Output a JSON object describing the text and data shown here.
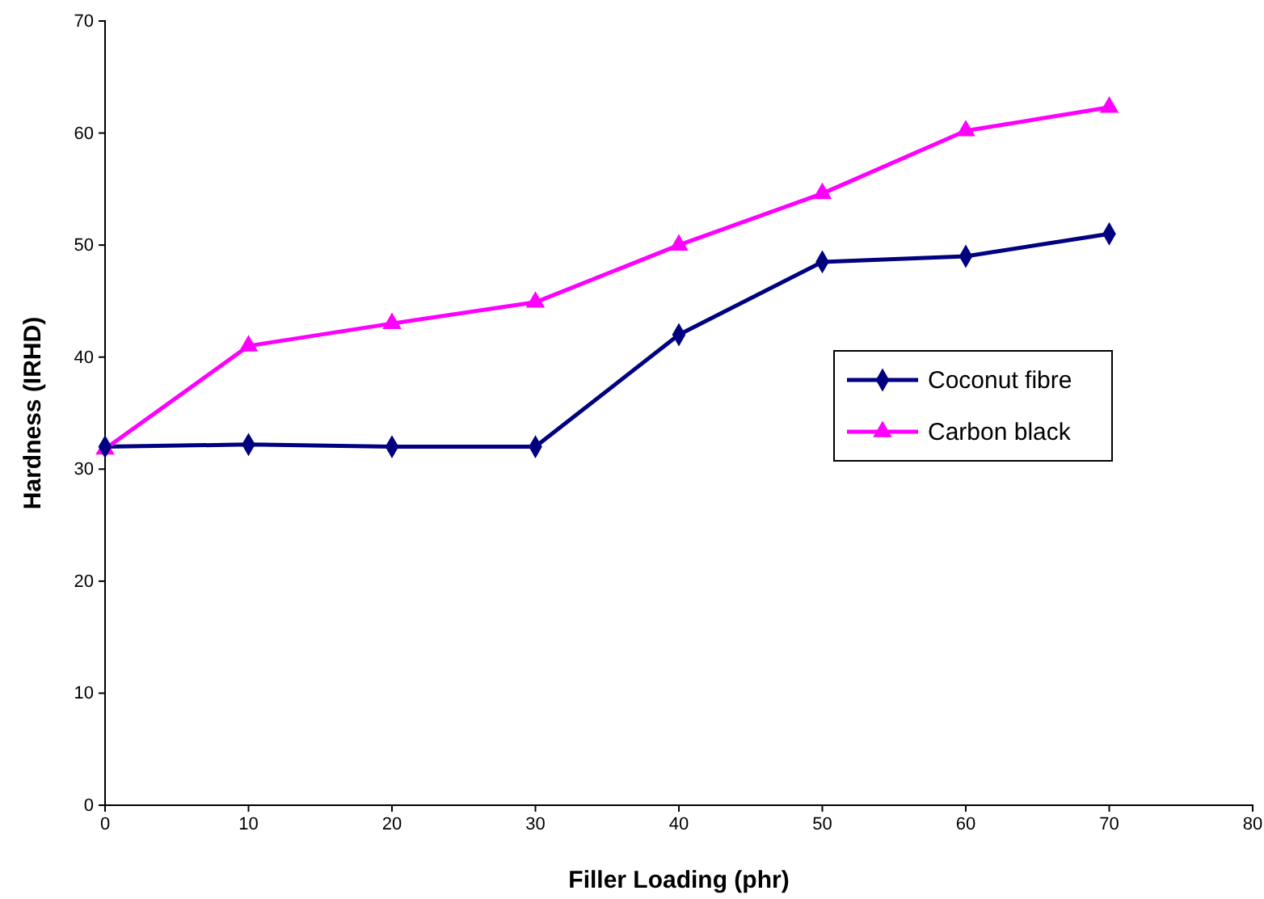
{
  "chart_data": {
    "type": "line",
    "xlabel": "Filler Loading (phr)",
    "ylabel": "Hardness (IRHD)",
    "x": [
      0,
      10,
      20,
      30,
      40,
      50,
      60,
      70
    ],
    "series": [
      {
        "name": "Coconut fibre",
        "color": "#000080",
        "marker": "diamond",
        "values": [
          32,
          32.2,
          32,
          32,
          42,
          48.5,
          49,
          51
        ]
      },
      {
        "name": "Carbon black",
        "color": "#ff00ff",
        "marker": "triangle",
        "values": [
          31.8,
          41,
          43,
          44.9,
          50,
          54.6,
          60.2,
          62.3
        ]
      }
    ],
    "xlim": [
      0,
      80
    ],
    "xticks": [
      0,
      10,
      20,
      30,
      40,
      50,
      60,
      70,
      80
    ],
    "ylim": [
      0,
      70
    ],
    "yticks": [
      0,
      10,
      20,
      30,
      40,
      50,
      60,
      70
    ],
    "grid": false,
    "legend": "right",
    "line_style": "solid"
  }
}
